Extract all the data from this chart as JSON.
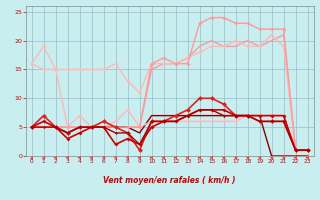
{
  "xlabel": "Vent moyen/en rafales ( km/h )",
  "background_color": "#c8eef0",
  "grid_color": "#99bbcc",
  "xlim": [
    -0.5,
    23.5
  ],
  "ylim": [
    0,
    26
  ],
  "xticks": [
    0,
    1,
    2,
    3,
    4,
    5,
    6,
    7,
    8,
    9,
    10,
    11,
    12,
    13,
    14,
    15,
    16,
    17,
    18,
    19,
    20,
    21,
    22,
    23
  ],
  "yticks": [
    0,
    5,
    10,
    15,
    20,
    25
  ],
  "lines": [
    {
      "x": [
        0,
        1,
        2,
        3,
        4,
        5,
        6,
        7,
        8,
        9,
        10,
        11,
        12,
        13,
        14,
        15,
        16,
        17,
        18,
        19,
        20,
        21,
        22,
        23
      ],
      "y": [
        16,
        19,
        15,
        15,
        15,
        15,
        15,
        16,
        13,
        11,
        16,
        16,
        16,
        17,
        18,
        19,
        19,
        20,
        19,
        19,
        21,
        19,
        1,
        1
      ],
      "color": "#ffb8b8",
      "lw": 1.0,
      "marker": "D",
      "ms": 2.0
    },
    {
      "x": [
        0,
        1,
        2,
        3,
        4,
        5,
        6,
        7,
        8,
        9,
        10,
        11,
        12,
        13,
        14,
        15,
        16,
        17,
        18,
        19,
        20,
        21,
        22,
        23
      ],
      "y": [
        16,
        15,
        15,
        5,
        7,
        5,
        5,
        6,
        8,
        5,
        6,
        6,
        6,
        6,
        6,
        6,
        6,
        6,
        7,
        7,
        7,
        7,
        1,
        1
      ],
      "color": "#ffb8b8",
      "lw": 1.0,
      "marker": "D",
      "ms": 2.0
    },
    {
      "x": [
        0,
        1,
        2,
        3,
        4,
        5,
        6,
        7,
        8,
        9,
        10,
        11,
        12,
        13,
        14,
        15,
        16,
        17,
        18,
        19,
        20,
        21,
        22,
        23
      ],
      "y": [
        5,
        5,
        5,
        5,
        5,
        5,
        5,
        5,
        5,
        5,
        16,
        17,
        16,
        16,
        23,
        24,
        24,
        23,
        23,
        22,
        22,
        22,
        1,
        1
      ],
      "color": "#ff9999",
      "lw": 1.0,
      "marker": "D",
      "ms": 2.0
    },
    {
      "x": [
        0,
        1,
        2,
        3,
        4,
        5,
        6,
        7,
        8,
        9,
        10,
        11,
        12,
        13,
        14,
        15,
        16,
        17,
        18,
        19,
        20,
        21,
        22,
        23
      ],
      "y": [
        5,
        5,
        5,
        5,
        5,
        5,
        5,
        5,
        5,
        5,
        15,
        16,
        16,
        17,
        19,
        20,
        19,
        19,
        20,
        19,
        20,
        21,
        1,
        1
      ],
      "color": "#ff9999",
      "lw": 1.0,
      "marker": null,
      "ms": 0
    },
    {
      "x": [
        0,
        1,
        2,
        3,
        4,
        5,
        6,
        7,
        8,
        9,
        10,
        11,
        12,
        13,
        14,
        15,
        16,
        17,
        18,
        19,
        20,
        21,
        22,
        23
      ],
      "y": [
        5,
        7,
        5,
        4,
        5,
        5,
        6,
        5,
        4,
        1,
        6,
        6,
        7,
        8,
        10,
        10,
        9,
        7,
        7,
        6,
        6,
        6,
        1,
        1
      ],
      "color": "#dd2222",
      "lw": 1.2,
      "marker": "D",
      "ms": 2.5
    },
    {
      "x": [
        0,
        1,
        2,
        3,
        4,
        5,
        6,
        7,
        8,
        9,
        10,
        11,
        12,
        13,
        14,
        15,
        16,
        17,
        18,
        19,
        20,
        21,
        22,
        23
      ],
      "y": [
        5,
        6,
        5,
        3,
        4,
        5,
        5,
        2,
        3,
        2,
        5,
        6,
        6,
        7,
        8,
        8,
        8,
        7,
        7,
        7,
        7,
        7,
        1,
        1
      ],
      "color": "#cc0000",
      "lw": 1.2,
      "marker": "D",
      "ms": 2.0
    },
    {
      "x": [
        0,
        1,
        2,
        3,
        4,
        5,
        6,
        7,
        8,
        9,
        10,
        11,
        12,
        13,
        14,
        15,
        16,
        17,
        18,
        19,
        20,
        21,
        22,
        23
      ],
      "y": [
        5,
        5,
        5,
        4,
        5,
        5,
        5,
        4,
        4,
        2,
        6,
        6,
        6,
        7,
        8,
        8,
        7,
        7,
        7,
        6,
        6,
        6,
        1,
        1
      ],
      "color": "#aa0000",
      "lw": 1.0,
      "marker": "D",
      "ms": 1.5
    },
    {
      "x": [
        0,
        1,
        2,
        3,
        4,
        5,
        6,
        7,
        8,
        9,
        10,
        11,
        12,
        13,
        14,
        15,
        16,
        17,
        18,
        19,
        20,
        21,
        22,
        23
      ],
      "y": [
        5,
        5,
        5,
        4,
        5,
        5,
        5,
        5,
        5,
        4,
        7,
        7,
        7,
        7,
        7,
        7,
        7,
        7,
        7,
        7,
        0,
        0,
        0,
        0
      ],
      "color": "#880000",
      "lw": 1.0,
      "marker": null,
      "ms": 0
    }
  ],
  "arrows": {
    "color": "#ff3333",
    "directions": [
      180,
      90,
      270,
      270,
      270,
      270,
      315,
      45,
      45,
      270,
      270,
      270,
      270,
      270,
      270,
      270,
      225,
      225,
      225,
      225,
      225,
      225,
      270,
      270
    ]
  }
}
